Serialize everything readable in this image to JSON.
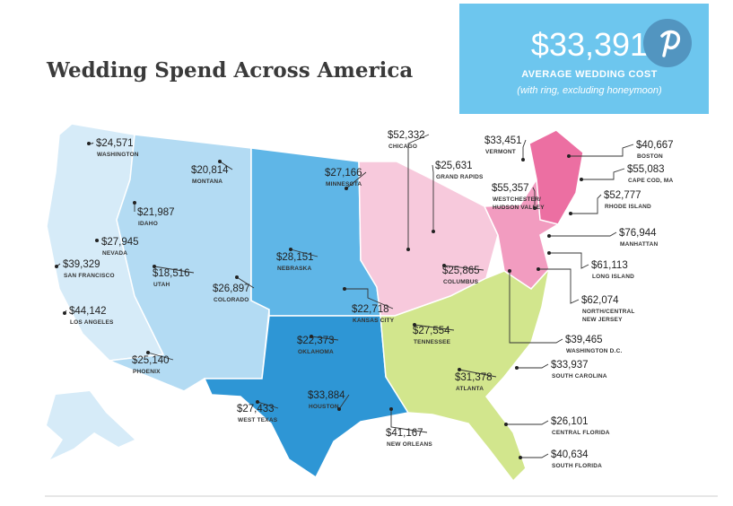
{
  "header": {
    "title": "Wedding Spend Across America"
  },
  "banner": {
    "value": "$33,391",
    "label": "AVERAGE WEDDING COST",
    "note": "(with ring, excluding honeymoon)"
  },
  "locations": [
    {
      "amount": "$24,571",
      "name": [
        "WASHINGTON"
      ]
    },
    {
      "amount": "$20,814",
      "name": [
        "MONTANA"
      ]
    },
    {
      "amount": "$21,987",
      "name": [
        "IDAHO"
      ]
    },
    {
      "amount": "$27,945",
      "name": [
        "NEVADA"
      ]
    },
    {
      "amount": "$39,329",
      "name": [
        "SAN FRANCISCO"
      ]
    },
    {
      "amount": "$18,516",
      "name": [
        "UTAH"
      ]
    },
    {
      "amount": "$26,897",
      "name": [
        "COLORADO"
      ]
    },
    {
      "amount": "$44,142",
      "name": [
        "LOS ANGELES"
      ]
    },
    {
      "amount": "$25,140",
      "name": [
        "PHOENIX"
      ]
    },
    {
      "amount": "$27,433",
      "name": [
        "WEST TEXAS"
      ]
    },
    {
      "amount": "$33,884",
      "name": [
        "HOUSTON"
      ]
    },
    {
      "amount": "$22,373",
      "name": [
        "OKLAHOMA"
      ]
    },
    {
      "amount": "$28,151",
      "name": [
        "NEBRASKA"
      ]
    },
    {
      "amount": "$27,166",
      "name": [
        "MINNESOTA"
      ]
    },
    {
      "amount": "$22,718",
      "name": [
        "KANSAS CITY"
      ]
    },
    {
      "amount": "$52,332",
      "name": [
        "CHICAGO"
      ]
    },
    {
      "amount": "$25,631",
      "name": [
        "GRAND RAPIDS"
      ]
    },
    {
      "amount": "$25,865",
      "name": [
        "COLUMBUS"
      ]
    },
    {
      "amount": "$27,554",
      "name": [
        "TENNESSEE"
      ]
    },
    {
      "amount": "$31,378",
      "name": [
        "ATLANTA"
      ]
    },
    {
      "amount": "$41,167",
      "name": [
        "NEW ORLEANS"
      ]
    },
    {
      "amount": "$33,451",
      "name": [
        "VERMONT"
      ]
    },
    {
      "amount": "$55,357",
      "name": [
        "WESTCHESTER/",
        "HUDSON VALLEY"
      ]
    },
    {
      "amount": "$40,667",
      "name": [
        "BOSTON"
      ]
    },
    {
      "amount": "$55,083",
      "name": [
        "CAPE COD, MA"
      ]
    },
    {
      "amount": "$52,777",
      "name": [
        "RHODE ISLAND"
      ]
    },
    {
      "amount": "$76,944",
      "name": [
        "MANHATTAN"
      ]
    },
    {
      "amount": "$61,113",
      "name": [
        "LONG ISLAND"
      ]
    },
    {
      "amount": "$62,074",
      "name": [
        "NORTH/CENTRAL",
        "NEW JERSEY"
      ]
    },
    {
      "amount": "$39,465",
      "name": [
        "WASHINGTON D.C."
      ]
    },
    {
      "amount": "$33,937",
      "name": [
        "SOUTH CAROLINA"
      ]
    },
    {
      "amount": "$26,101",
      "name": [
        "CENTRAL FLORIDA"
      ]
    },
    {
      "amount": "$40,634",
      "name": [
        "SOUTH FLORIDA"
      ]
    }
  ]
}
